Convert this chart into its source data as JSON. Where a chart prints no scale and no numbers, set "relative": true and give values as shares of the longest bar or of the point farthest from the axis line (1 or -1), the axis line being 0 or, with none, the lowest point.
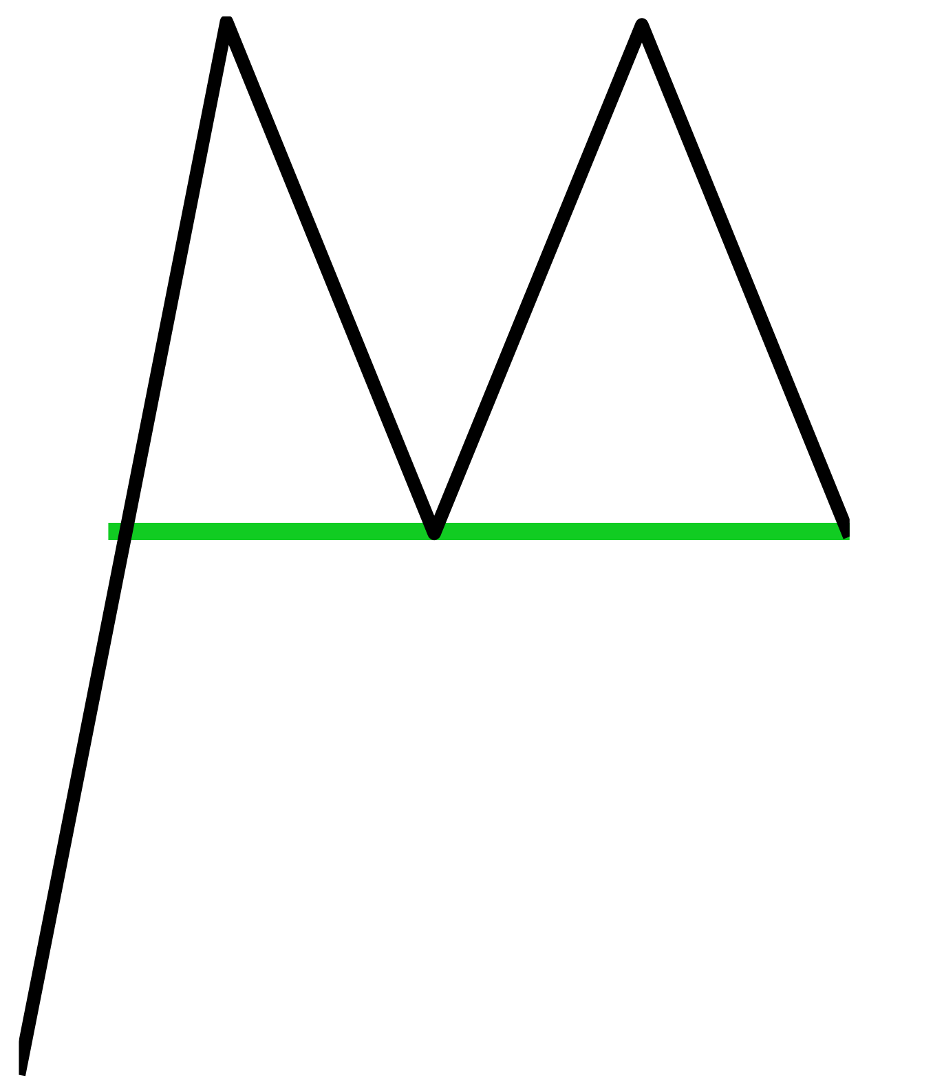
{
  "chart_data": {
    "type": "line",
    "relative": true,
    "categories": [
      null,
      null,
      null,
      null,
      null
    ],
    "series": [
      {
        "color": "#000000",
        "values": [
          0,
          1,
          0.514,
          0.997,
          0.511
        ]
      }
    ],
    "ref_lines": [
      {
        "axis": "y",
        "value": 0.516,
        "color": "#11cc22"
      }
    ]
  }
}
